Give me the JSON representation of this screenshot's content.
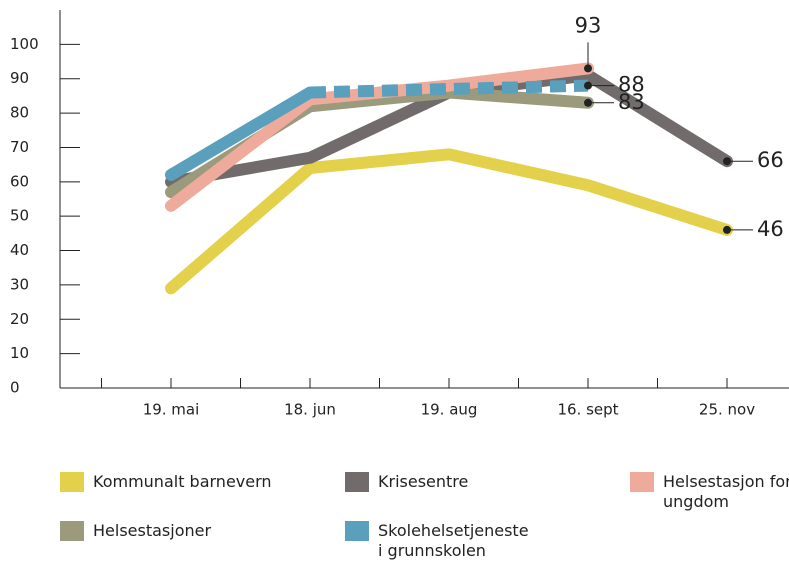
{
  "chart_data": {
    "type": "line",
    "categories": [
      "19. mai",
      "18. jun",
      "19. aug",
      "16. sept",
      "25. nov"
    ],
    "ylim": [
      0,
      110
    ],
    "yticks": [
      0,
      10,
      20,
      30,
      40,
      50,
      60,
      70,
      80,
      90,
      100
    ],
    "series": [
      {
        "name": "Kommunalt barnevern",
        "color": "#e3d14b",
        "values": [
          29,
          64,
          68,
          59,
          46
        ],
        "label_at": 4,
        "label_pos": "right"
      },
      {
        "name": "Krisesentre",
        "color": "#716b6b",
        "values": [
          60,
          67,
          86,
          91,
          66
        ],
        "label_at": 4,
        "label_pos": "right"
      },
      {
        "name": "Helsestasjon for ungdom",
        "color": "#eeaa9a",
        "values": [
          53,
          84,
          88,
          93,
          null
        ],
        "label_at": 3,
        "label_pos": "top"
      },
      {
        "name": "Helsestasjoner",
        "color": "#9b9a7c",
        "values": [
          57,
          82,
          86,
          83,
          null
        ],
        "label_at": 3,
        "label_pos": "right"
      },
      {
        "name": "Skolehelsetjeneste i grunnskolen",
        "color": "#5aa0bc",
        "values": [
          62,
          86,
          87,
          88,
          null
        ],
        "label_at": 3,
        "label_pos": "right",
        "dashed_from": 1
      }
    ]
  }
}
